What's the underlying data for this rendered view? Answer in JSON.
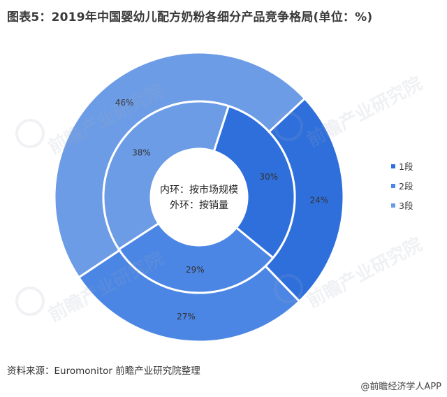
{
  "title": "图表5：2019年中国婴幼儿配方奶粉各细分产品竞争格局(单位：%)",
  "source": "资料来源：Euromonitor  前瞻产业研究院整理",
  "credit": "@前瞻经济学人APP",
  "watermark": "前瞻产业研究院",
  "center_text": [
    "内环：按市场规模",
    "外环：按销量"
  ],
  "colors": {
    "1段": "#2f6fdc",
    "2段": "#4b86e4",
    "3段": "#6c9ce6"
  },
  "chart_data": {
    "type": "pie",
    "subtype": "nested-donut",
    "legend_position": "right",
    "categories": [
      "1段",
      "2段",
      "3段"
    ],
    "series": [
      {
        "name": "内环：按市场规模",
        "values": [
          30,
          29,
          38
        ]
      },
      {
        "name": "外环：按销量",
        "values": [
          24,
          27,
          46
        ]
      }
    ],
    "labels": {
      "inner": [
        "30%",
        "29%",
        "38%"
      ],
      "outer": [
        "24%",
        "27%",
        "46%"
      ]
    }
  }
}
